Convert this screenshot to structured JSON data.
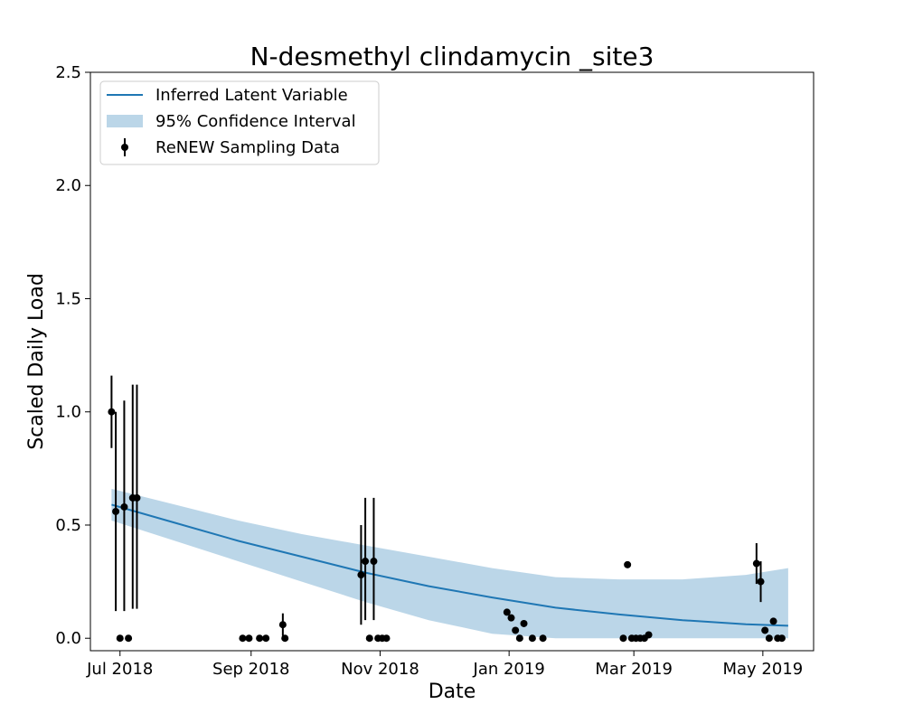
{
  "chart_data": {
    "type": "line",
    "title": "N-desmethyl clindamycin _site3",
    "xlabel": "Date",
    "ylabel": "Scaled Daily Load",
    "xlim": [
      "2018-06-17",
      "2019-05-25"
    ],
    "ylim": [
      -0.055,
      2.5
    ],
    "x_ticks": [
      "2018-07-01",
      "2018-09-01",
      "2018-11-01",
      "2019-01-01",
      "2019-03-01",
      "2019-05-01"
    ],
    "x_tick_labels": [
      "Jul 2018",
      "Sep 2018",
      "Nov 2018",
      "Jan 2019",
      "Mar 2019",
      "May 2019"
    ],
    "y_ticks": [
      0.0,
      0.5,
      1.0,
      1.5,
      2.0,
      2.5
    ],
    "y_tick_labels": [
      "0.0",
      "0.5",
      "1.0",
      "1.5",
      "2.0",
      "2.5"
    ],
    "grid": false,
    "legend_position": "top-left",
    "legend": [
      "Inferred Latent Variable",
      "95% Confidence Interval",
      "ReNEW Sampling Data"
    ],
    "colors": {
      "line": "#1f77b4",
      "band": "#1f77b4",
      "points": "#000000"
    },
    "latent": {
      "x": [
        "2018-06-27",
        "2018-07-27",
        "2018-08-26",
        "2018-09-25",
        "2018-10-25",
        "2018-11-24",
        "2018-12-24",
        "2019-01-23",
        "2019-02-22",
        "2019-03-24",
        "2019-04-23",
        "2019-05-13"
      ],
      "y": [
        0.59,
        0.51,
        0.43,
        0.36,
        0.29,
        0.23,
        0.18,
        0.135,
        0.105,
        0.08,
        0.062,
        0.055
      ]
    },
    "confidence_interval": {
      "x": [
        "2018-06-27",
        "2018-07-27",
        "2018-08-26",
        "2018-09-25",
        "2018-10-25",
        "2018-11-24",
        "2018-12-24",
        "2019-01-23",
        "2019-02-22",
        "2019-03-24",
        "2019-04-23",
        "2019-05-13"
      ],
      "lower": [
        0.52,
        0.43,
        0.34,
        0.25,
        0.16,
        0.08,
        0.02,
        0.0,
        0.0,
        0.0,
        0.0,
        0.0
      ],
      "upper": [
        0.66,
        0.59,
        0.52,
        0.46,
        0.41,
        0.36,
        0.31,
        0.27,
        0.26,
        0.26,
        0.28,
        0.31
      ]
    },
    "sampling_data": [
      {
        "x": "2018-06-27",
        "y": 1.0,
        "err_low": 0.84,
        "err_high": 1.16
      },
      {
        "x": "2018-06-29",
        "y": 0.56,
        "err_low": 0.12,
        "err_high": 1.0
      },
      {
        "x": "2018-07-01",
        "y": 0.0
      },
      {
        "x": "2018-07-03",
        "y": 0.58,
        "err_low": 0.12,
        "err_high": 1.05
      },
      {
        "x": "2018-07-05",
        "y": 0.0
      },
      {
        "x": "2018-07-07",
        "y": 0.62,
        "err_low": 0.13,
        "err_high": 1.12
      },
      {
        "x": "2018-07-09",
        "y": 0.62,
        "err_low": 0.13,
        "err_high": 1.12
      },
      {
        "x": "2018-08-28",
        "y": 0.0
      },
      {
        "x": "2018-08-31",
        "y": 0.0
      },
      {
        "x": "2018-09-05",
        "y": 0.0
      },
      {
        "x": "2018-09-08",
        "y": 0.0
      },
      {
        "x": "2018-09-16",
        "y": 0.06,
        "err_low": 0.01,
        "err_high": 0.11
      },
      {
        "x": "2018-09-17",
        "y": 0.0
      },
      {
        "x": "2018-10-23",
        "y": 0.28,
        "err_low": 0.06,
        "err_high": 0.5
      },
      {
        "x": "2018-10-25",
        "y": 0.34,
        "err_low": 0.08,
        "err_high": 0.62
      },
      {
        "x": "2018-10-27",
        "y": 0.0
      },
      {
        "x": "2018-10-29",
        "y": 0.34,
        "err_low": 0.08,
        "err_high": 0.62
      },
      {
        "x": "2018-10-31",
        "y": 0.0
      },
      {
        "x": "2018-11-02",
        "y": 0.0
      },
      {
        "x": "2018-11-04",
        "y": 0.0
      },
      {
        "x": "2018-12-31",
        "y": 0.115
      },
      {
        "x": "2019-01-02",
        "y": 0.09
      },
      {
        "x": "2019-01-04",
        "y": 0.035
      },
      {
        "x": "2019-01-06",
        "y": 0.0
      },
      {
        "x": "2019-01-08",
        "y": 0.065
      },
      {
        "x": "2019-01-12",
        "y": 0.0
      },
      {
        "x": "2019-01-17",
        "y": 0.0
      },
      {
        "x": "2019-02-24",
        "y": 0.0
      },
      {
        "x": "2019-02-26",
        "y": 0.325
      },
      {
        "x": "2019-02-28",
        "y": 0.0
      },
      {
        "x": "2019-03-02",
        "y": 0.0
      },
      {
        "x": "2019-03-04",
        "y": 0.0
      },
      {
        "x": "2019-03-06",
        "y": 0.0
      },
      {
        "x": "2019-03-08",
        "y": 0.015
      },
      {
        "x": "2019-04-28",
        "y": 0.33,
        "err_low": 0.24,
        "err_high": 0.42
      },
      {
        "x": "2019-04-30",
        "y": 0.25,
        "err_low": 0.16,
        "err_high": 0.34
      },
      {
        "x": "2019-05-02",
        "y": 0.035
      },
      {
        "x": "2019-05-04",
        "y": 0.0
      },
      {
        "x": "2019-05-06",
        "y": 0.075
      },
      {
        "x": "2019-05-08",
        "y": 0.0
      },
      {
        "x": "2019-05-10",
        "y": 0.0
      }
    ]
  }
}
